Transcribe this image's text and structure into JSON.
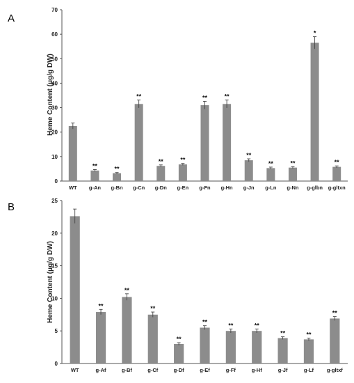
{
  "chart_data": [
    {
      "type": "bar",
      "panel": "A",
      "ylabel": "Heme Content (μg/g DW)",
      "xlabel": "",
      "ylim": [
        0,
        70
      ],
      "yticks": [
        0,
        10,
        20,
        30,
        40,
        50,
        60,
        70
      ],
      "grid": false,
      "bar_color": "#8c8c8c",
      "categories": [
        "WT",
        "g-An",
        "g-Bn",
        "g-Cn",
        "g-Dn",
        "g-En",
        "g-Fn",
        "g-Hn",
        "g-Jn",
        "g-Ln",
        "g-Nn",
        "g-glbn",
        "g-gltxn"
      ],
      "values": [
        22.5,
        4.3,
        3.2,
        31.5,
        6.2,
        6.8,
        31.0,
        31.5,
        8.5,
        5.3,
        5.5,
        56.5,
        5.8
      ],
      "errors": [
        1.2,
        0.4,
        0.3,
        1.6,
        0.4,
        0.4,
        1.6,
        1.6,
        0.6,
        0.4,
        0.4,
        2.5,
        0.4
      ],
      "significance": [
        "",
        "**",
        "**",
        "**",
        "**",
        "**",
        "**",
        "**",
        "**",
        "**",
        "**",
        "*",
        "**"
      ]
    },
    {
      "type": "bar",
      "panel": "B",
      "ylabel": "Heme Content (μg/g DW)",
      "xlabel": "",
      "ylim": [
        0,
        25
      ],
      "yticks": [
        0,
        5,
        10,
        15,
        20,
        25
      ],
      "grid": false,
      "bar_color": "#8c8c8c",
      "categories": [
        "WT",
        "g-Af",
        "g-Bf",
        "g-Cf",
        "g-Df",
        "g-Ef",
        "g-Ff",
        "g-Hf",
        "g-Jf",
        "g-Lf",
        "g-gltxf"
      ],
      "values": [
        22.6,
        7.9,
        10.2,
        7.5,
        3.0,
        5.5,
        5.0,
        5.0,
        3.9,
        3.7,
        6.9
      ],
      "errors": [
        1.1,
        0.4,
        0.5,
        0.4,
        0.2,
        0.3,
        0.3,
        0.3,
        0.2,
        0.2,
        0.3
      ],
      "significance": [
        "",
        "**",
        "**",
        "**",
        "**",
        "**",
        "**",
        "**",
        "**",
        "**",
        "**"
      ]
    }
  ]
}
